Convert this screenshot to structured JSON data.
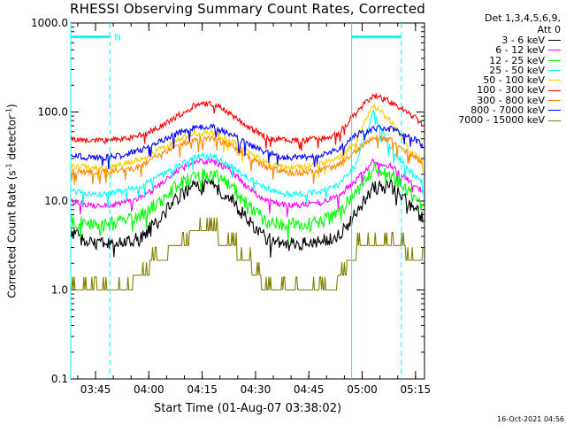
{
  "chart_data": {
    "type": "line",
    "title": "RHESSI Observing Summary Count Rates, Corrected",
    "xlabel": "Start Time (01-Aug-07 03:38:02)",
    "ylabel_main": "Corrected Count Rate (s",
    "ylabel_sup1": "-1",
    "ylabel_mid": " detector",
    "ylabel_sup2": "-1",
    "ylabel_end": ")",
    "y_scale": "log",
    "ylim": [
      0.1,
      1000
    ],
    "xlim_minutes": [
      0,
      99.5
    ],
    "x_ticks": [
      {
        "label": "03:45",
        "min": 6.97
      },
      {
        "label": "04:00",
        "min": 21.97
      },
      {
        "label": "04:15",
        "min": 36.97
      },
      {
        "label": "04:30",
        "min": 51.97
      },
      {
        "label": "04:45",
        "min": 66.97
      },
      {
        "label": "05:00",
        "min": 81.97
      },
      {
        "label": "05:15",
        "min": 96.97
      }
    ],
    "y_ticks": [
      {
        "label": "1000.0",
        "value": 1000
      },
      {
        "label": "100.0",
        "value": 100
      },
      {
        "label": "10.0",
        "value": 10
      },
      {
        "label": "1.0",
        "value": 1
      },
      {
        "label": "0.1",
        "value": 0.1
      }
    ],
    "legend_header": [
      "Det 1,3,4,5,6,9,",
      "Att 0"
    ],
    "legend_position": "top-right",
    "x": [
      0,
      5,
      10,
      15,
      20,
      25,
      30,
      35,
      40,
      45,
      50,
      55,
      60,
      65,
      70,
      75,
      80,
      85,
      90,
      95,
      99
    ],
    "series": [
      {
        "name": "3 - 6 keV",
        "color": "#000000",
        "values": [
          4.5,
          3.4,
          3.3,
          3.3,
          4.0,
          6.5,
          11,
          15,
          15,
          11,
          6,
          3.8,
          3.3,
          3.3,
          3.5,
          4.0,
          7,
          14,
          15,
          10,
          6.5
        ]
      },
      {
        "name": "6 - 12 keV",
        "color": "#ff00ff",
        "values": [
          10,
          9,
          9,
          9.5,
          11,
          15,
          22,
          28,
          28,
          22,
          14,
          10,
          9,
          9,
          9.5,
          11,
          17,
          28,
          25,
          17,
          13
        ]
      },
      {
        "name": "12 - 25 keV",
        "color": "#00ff00",
        "values": [
          6,
          5.5,
          5.5,
          6,
          7,
          10,
          15,
          20,
          20,
          15,
          9,
          6,
          5.5,
          5.5,
          6,
          7,
          12,
          23,
          20,
          13,
          9
        ]
      },
      {
        "name": "25 - 50 keV",
        "color": "#00ffff",
        "values": [
          13,
          12,
          12,
          13,
          15,
          19,
          25,
          32,
          32,
          25,
          18,
          14,
          12,
          12,
          13,
          15,
          24,
          100,
          40,
          22,
          16
        ]
      },
      {
        "name": "50 - 100 keV",
        "color": "#ffcc00",
        "values": [
          25,
          24,
          24,
          26,
          30,
          38,
          48,
          58,
          58,
          47,
          35,
          27,
          24,
          24,
          26,
          30,
          45,
          120,
          80,
          40,
          28
        ]
      },
      {
        "name": "100 - 300 keV",
        "color": "#ff0000",
        "values": [
          50,
          48,
          48,
          50,
          55,
          68,
          90,
          120,
          125,
          95,
          68,
          52,
          48,
          48,
          50,
          56,
          95,
          155,
          130,
          95,
          75
        ]
      },
      {
        "name": "300 - 800 keV",
        "color": "#ff8800",
        "values": [
          22,
          21,
          21,
          22,
          25,
          32,
          42,
          50,
          50,
          42,
          31,
          24,
          21,
          21,
          22,
          25,
          36,
          52,
          48,
          35,
          26
        ]
      },
      {
        "name": "800 - 7000 keV",
        "color": "#0000ff",
        "values": [
          33,
          31,
          31,
          33,
          38,
          46,
          58,
          68,
          68,
          56,
          43,
          35,
          31,
          31,
          33,
          37,
          55,
          65,
          65,
          55,
          42
        ]
      },
      {
        "name": "7000 - 15000 keV",
        "color": "#808000",
        "values": [
          1.0,
          1.0,
          1.0,
          1.0,
          1.5,
          2.2,
          3.2,
          4.2,
          4.2,
          3.0,
          2.0,
          1.0,
          1.0,
          1.0,
          1.0,
          1.2,
          2.5,
          3.5,
          3.2,
          2.5,
          2.0
        ]
      }
    ],
    "bar_markers": [
      {
        "label": "N",
        "x_start": 0,
        "x_end": 11,
        "level": 700
      },
      {
        "label": "",
        "x_start": 79,
        "x_end": 93,
        "level": 700
      }
    ],
    "vertical_lines": [
      {
        "min": 0,
        "style": "solid"
      },
      {
        "min": 11,
        "style": "dashed"
      },
      {
        "min": 79,
        "style": "solid"
      },
      {
        "min": 93,
        "style": "dashed"
      }
    ],
    "marker_color": "#00ffff"
  },
  "timestamp": "16-Oct-2021 04:56"
}
